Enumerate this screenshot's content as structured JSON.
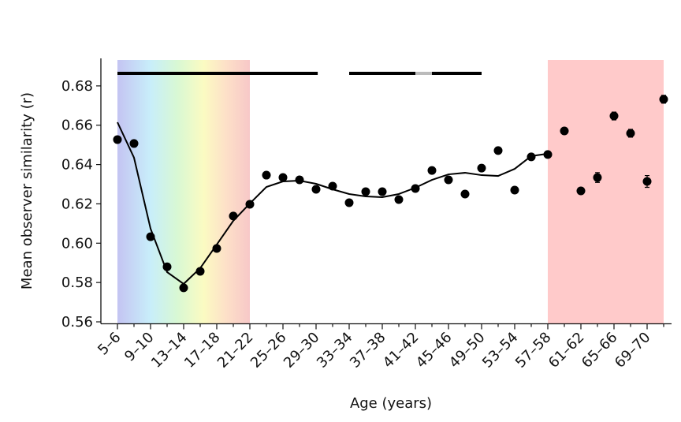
{
  "chart_data": {
    "type": "scatter",
    "xlabel": "Age (years)",
    "ylabel": "Mean observer similarity (r)",
    "categories": [
      "5–6",
      null,
      "9–10",
      null,
      "13–14",
      null,
      "17–18",
      null,
      "21–22",
      null,
      "25–26",
      null,
      "29–30",
      null,
      "33–34",
      null,
      "37–38",
      null,
      "41–42",
      null,
      "45–46",
      null,
      "49–50",
      null,
      "53–54",
      null,
      "57–58",
      null,
      "61–62",
      null,
      "65–66",
      null,
      "69–70",
      null
    ],
    "series": [
      {
        "color": "#000000",
        "values": [
          0.6527,
          0.6507,
          0.6033,
          0.588,
          0.5773,
          0.5857,
          0.5973,
          0.6138,
          0.6198,
          0.6346,
          0.6334,
          0.6322,
          0.6274,
          0.629,
          0.6206,
          0.6262,
          0.6262,
          0.6222,
          0.6278,
          0.637,
          0.6322,
          0.625,
          0.6382,
          0.6471,
          0.627,
          0.6439,
          0.6451,
          0.6571,
          0.6266,
          0.6334,
          0.6647,
          0.6559,
          0.6314,
          0.6732
        ],
        "errors": [
          0.001,
          0.001,
          0.001,
          0.001,
          0.001,
          0.001,
          0.001,
          0.001,
          0.001,
          0.001,
          0.001,
          0.001,
          0.001,
          0.001,
          0.001,
          0.001,
          0.001,
          0.001,
          0.001,
          0.001,
          0.001,
          0.001,
          0.001,
          0.001,
          0.001,
          0.001,
          0.001,
          0.001,
          0.0015,
          0.0025,
          0.002,
          0.002,
          0.003,
          0.002
        ]
      },
      {
        "color": "#000000",
        "line": true,
        "values": [
          0.6615,
          0.6435,
          0.6074,
          0.5853,
          0.5793,
          0.5873,
          0.5993,
          0.6114,
          0.6202,
          0.6286,
          0.6314,
          0.6318,
          0.6302,
          0.6274,
          0.625,
          0.6238,
          0.6234,
          0.625,
          0.6282,
          0.6322,
          0.635,
          0.6358,
          0.6346,
          0.6342,
          0.6378,
          0.6443,
          0.6455,
          null,
          null,
          null,
          null,
          null,
          null,
          null
        ]
      }
    ],
    "ylim": [
      0.559,
      0.694
    ],
    "yticks": [
      0.56,
      0.58,
      {
        "value": 0.6,
        "label": "0.60"
      },
      0.62,
      0.64,
      0.66,
      0.68
    ]
  }
}
